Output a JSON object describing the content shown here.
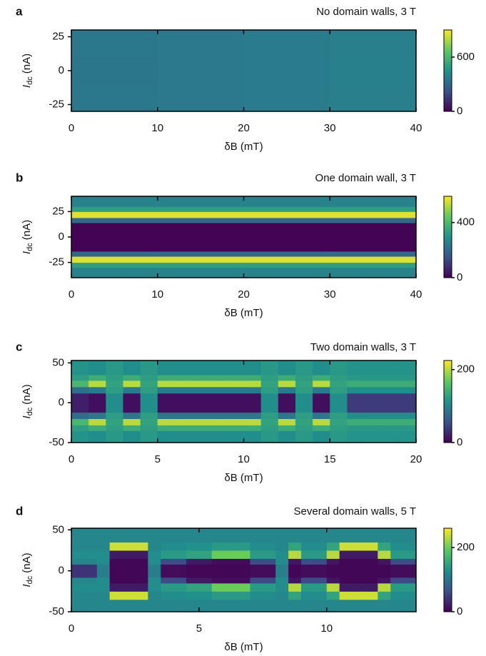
{
  "chart_data": [
    {
      "type": "heatmap",
      "panel": "a",
      "title": "No domain walls, 3 T",
      "xlabel": "δB (mT)",
      "ylabel": {
        "symbol": "I",
        "subscript": "dc",
        "unit": "(nA)"
      },
      "xlim": [
        0,
        40
      ],
      "ylim": [
        -30,
        30
      ],
      "xticks": [
        0,
        10,
        20,
        30,
        40
      ],
      "yticks": [
        25,
        0,
        -25
      ],
      "clim": [
        0,
        900
      ],
      "cticks": [
        0,
        600
      ],
      "xbins": [
        0,
        10,
        20,
        30,
        40
      ],
      "ybins": [
        -30,
        -10,
        10,
        30
      ],
      "z": [
        [
          360,
          355,
          360
        ],
        [
          365,
          365,
          365
        ],
        [
          370,
          370,
          372
        ],
        [
          385,
          390,
          385
        ]
      ]
    },
    {
      "type": "heatmap",
      "panel": "b",
      "title": "One domain wall, 3 T",
      "xlabel": "δB (mT)",
      "ylabel": {
        "symbol": "I",
        "subscript": "dc",
        "unit": "(nA)"
      },
      "xlim": [
        0,
        40
      ],
      "ylim": [
        -40,
        40
      ],
      "xticks": [
        0,
        10,
        20,
        30,
        40
      ],
      "yticks": [
        25,
        0,
        -25
      ],
      "clim": [
        0,
        590
      ],
      "cticks": [
        0,
        400
      ],
      "xbins": [
        0,
        5,
        10,
        15,
        20,
        25,
        30,
        35,
        40
      ],
      "ybins": [
        -40,
        -30,
        -25,
        -19,
        -14,
        14,
        19,
        25,
        30,
        40
      ],
      "z": [
        [
          260,
          330,
          560,
          200,
          5,
          200,
          560,
          330,
          260
        ],
        [
          260,
          330,
          560,
          200,
          5,
          200,
          560,
          330,
          260
        ],
        [
          260,
          330,
          560,
          200,
          5,
          200,
          560,
          330,
          260
        ],
        [
          260,
          330,
          560,
          200,
          5,
          200,
          560,
          330,
          260
        ],
        [
          260,
          330,
          560,
          200,
          5,
          200,
          560,
          330,
          260
        ],
        [
          260,
          330,
          560,
          200,
          5,
          200,
          560,
          330,
          260
        ],
        [
          260,
          330,
          560,
          200,
          5,
          200,
          560,
          330,
          260
        ],
        [
          260,
          330,
          560,
          200,
          5,
          200,
          560,
          330,
          260
        ]
      ]
    },
    {
      "type": "heatmap",
      "panel": "c",
      "title": "Two domain walls, 3 T",
      "xlabel": "δB (mT)",
      "ylabel": {
        "symbol": "I",
        "subscript": "dc",
        "unit": "(nA)"
      },
      "xlim": [
        0,
        20
      ],
      "ylim": [
        -50,
        53
      ],
      "xticks": [
        0,
        5,
        10,
        15,
        20
      ],
      "yticks": [
        50,
        0,
        -50
      ],
      "clim": [
        0,
        225
      ],
      "cticks": [
        0,
        200
      ],
      "xbins": [
        0,
        1,
        2,
        3,
        4,
        5,
        6,
        7,
        8,
        9,
        10,
        11,
        12,
        13,
        14,
        15,
        16,
        17,
        18,
        19,
        20
      ],
      "ybins": [
        -50,
        -35,
        -28,
        -20,
        -12,
        12,
        20,
        28,
        35,
        53
      ],
      "z": [
        [
          115,
          125,
          150,
          80,
          20,
          80,
          150,
          125,
          115
        ],
        [
          110,
          140,
          200,
          90,
          10,
          90,
          200,
          140,
          110
        ],
        [
          120,
          125,
          130,
          125,
          110,
          125,
          130,
          125,
          120
        ],
        [
          110,
          140,
          200,
          90,
          10,
          90,
          200,
          140,
          110
        ],
        [
          120,
          125,
          130,
          125,
          110,
          125,
          130,
          125,
          120
        ],
        [
          110,
          140,
          200,
          90,
          10,
          90,
          200,
          140,
          110
        ],
        [
          110,
          140,
          200,
          90,
          10,
          90,
          200,
          140,
          110
        ],
        [
          110,
          140,
          200,
          90,
          10,
          90,
          200,
          140,
          110
        ],
        [
          110,
          140,
          200,
          90,
          10,
          90,
          200,
          140,
          110
        ],
        [
          110,
          140,
          200,
          90,
          10,
          90,
          200,
          140,
          110
        ],
        [
          110,
          140,
          200,
          90,
          10,
          90,
          200,
          140,
          110
        ],
        [
          120,
          125,
          130,
          125,
          110,
          125,
          130,
          125,
          120
        ],
        [
          110,
          140,
          200,
          90,
          10,
          90,
          200,
          140,
          110
        ],
        [
          120,
          125,
          130,
          125,
          110,
          125,
          130,
          125,
          120
        ],
        [
          110,
          140,
          200,
          90,
          10,
          90,
          200,
          140,
          110
        ],
        [
          120,
          125,
          130,
          125,
          110,
          125,
          130,
          125,
          120
        ],
        [
          115,
          120,
          140,
          110,
          40,
          110,
          140,
          120,
          115
        ],
        [
          115,
          120,
          140,
          110,
          40,
          110,
          140,
          120,
          115
        ],
        [
          115,
          120,
          140,
          110,
          40,
          110,
          140,
          120,
          115
        ],
        [
          115,
          120,
          140,
          110,
          40,
          110,
          140,
          120,
          115
        ]
      ]
    },
    {
      "type": "heatmap",
      "panel": "d",
      "title": "Several domain walls, 5 T",
      "xlabel": "δB (mT)",
      "ylabel": {
        "symbol": "I",
        "subscript": "dc",
        "unit": "(nA)"
      },
      "xlim": [
        0,
        13.5
      ],
      "ylim": [
        -50,
        52
      ],
      "xticks": [
        0,
        5,
        10
      ],
      "yticks": [
        50,
        0,
        -50
      ],
      "clim": [
        0,
        260
      ],
      "cticks": [
        0,
        200
      ],
      "xbins": [
        0,
        0.5,
        1,
        1.5,
        2,
        2.5,
        3,
        3.5,
        4,
        4.5,
        5,
        5.5,
        6,
        6.5,
        7,
        7.5,
        8,
        8.5,
        9,
        9.5,
        10,
        10.5,
        11,
        11.5,
        12,
        12.5,
        13,
        13.5
      ],
      "ybins": [
        -50,
        -35,
        -25,
        -15,
        -8,
        8,
        15,
        25,
        35,
        52
      ],
      "z": [
        [
          120,
          120,
          125,
          120,
          40,
          120,
          125,
          120,
          120
        ],
        [
          120,
          120,
          125,
          120,
          40,
          120,
          125,
          120,
          120
        ],
        [
          120,
          120,
          125,
          125,
          110,
          125,
          125,
          120,
          120
        ],
        [
          120,
          240,
          20,
          5,
          5,
          5,
          20,
          240,
          120
        ],
        [
          120,
          240,
          20,
          5,
          5,
          5,
          20,
          240,
          120
        ],
        [
          120,
          240,
          20,
          5,
          5,
          5,
          20,
          240,
          120
        ],
        [
          120,
          120,
          125,
          125,
          110,
          125,
          125,
          120,
          120
        ],
        [
          120,
          125,
          140,
          60,
          10,
          60,
          140,
          125,
          120
        ],
        [
          120,
          125,
          140,
          60,
          10,
          60,
          140,
          125,
          120
        ],
        [
          120,
          130,
          150,
          20,
          5,
          20,
          150,
          130,
          120
        ],
        [
          120,
          130,
          150,
          20,
          5,
          20,
          150,
          130,
          120
        ],
        [
          120,
          140,
          200,
          10,
          5,
          10,
          200,
          140,
          120
        ],
        [
          120,
          140,
          200,
          10,
          5,
          10,
          200,
          140,
          120
        ],
        [
          120,
          140,
          200,
          10,
          5,
          10,
          200,
          140,
          120
        ],
        [
          120,
          125,
          140,
          60,
          10,
          60,
          140,
          125,
          120
        ],
        [
          120,
          125,
          140,
          60,
          10,
          60,
          140,
          125,
          120
        ],
        [
          120,
          120,
          125,
          125,
          110,
          125,
          125,
          120,
          120
        ],
        [
          120,
          150,
          230,
          15,
          5,
          15,
          230,
          150,
          120
        ],
        [
          120,
          125,
          140,
          60,
          10,
          60,
          140,
          125,
          120
        ],
        [
          120,
          125,
          140,
          60,
          10,
          60,
          140,
          125,
          120
        ],
        [
          120,
          150,
          230,
          15,
          5,
          15,
          230,
          150,
          120
        ],
        [
          120,
          240,
          20,
          5,
          5,
          5,
          20,
          240,
          120
        ],
        [
          120,
          240,
          20,
          5,
          5,
          5,
          20,
          240,
          120
        ],
        [
          120,
          240,
          20,
          5,
          5,
          5,
          20,
          240,
          120
        ],
        [
          120,
          150,
          230,
          15,
          5,
          15,
          230,
          150,
          120
        ],
        [
          120,
          125,
          140,
          60,
          10,
          60,
          140,
          125,
          120
        ],
        [
          120,
          125,
          140,
          60,
          10,
          60,
          140,
          125,
          120
        ]
      ]
    }
  ]
}
